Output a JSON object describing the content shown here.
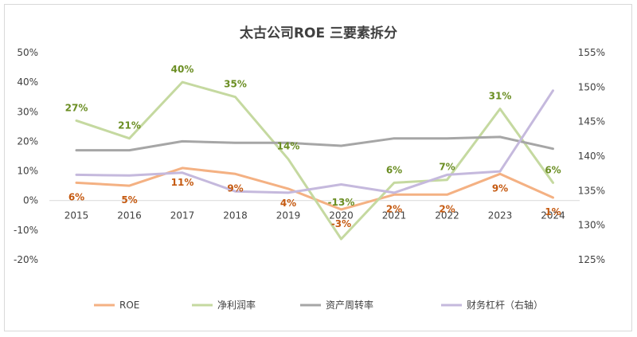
{
  "chart_data": {
    "type": "line",
    "title": "太古公司ROE 三要素拆分",
    "categories": [
      "2015",
      "2016",
      "2017",
      "2018",
      "2019",
      "2020",
      "2021",
      "2022",
      "2023",
      "2024"
    ],
    "left_axis": {
      "ticks": [
        "50%",
        "40%",
        "30%",
        "20%",
        "10%",
        "0%",
        "-10%",
        "-20%"
      ],
      "ylim": [
        -20,
        50
      ]
    },
    "right_axis": {
      "ticks": [
        "155%",
        "150%",
        "145%",
        "140%",
        "135%",
        "130%",
        "125%"
      ],
      "ylim": [
        125,
        155
      ]
    },
    "grid": false,
    "legend_position": "bottom",
    "series": [
      {
        "name": "ROE",
        "axis": "left",
        "color": "#f4b183",
        "values": [
          6,
          5,
          11,
          9,
          4,
          -3,
          2,
          2,
          9,
          1
        ],
        "labels": [
          "6%",
          "5%",
          "11%",
          "9%",
          "4%",
          "-3%",
          "2%",
          "2%",
          "9%",
          "1%"
        ],
        "label_color": "#c55a11"
      },
      {
        "name": "净利润率",
        "axis": "left",
        "color": "#c5d9a0",
        "values": [
          27,
          21,
          40,
          35,
          14,
          -13,
          6,
          7,
          31,
          6
        ],
        "labels": [
          "27%",
          "21%",
          "40%",
          "35%",
          "14%",
          "-13%",
          "6%",
          "7%",
          "31%",
          "6%"
        ],
        "label_color": "#6b8e23"
      },
      {
        "name": "资产周转率",
        "axis": "left",
        "color": "#a6a6a6",
        "values": [
          17,
          17,
          20,
          19.5,
          19.5,
          18.5,
          21,
          21,
          21.5,
          17.5
        ]
      },
      {
        "name": "财务杠杆（右轴）",
        "axis": "right",
        "color": "#c5b9dd",
        "values": [
          137.3,
          137.2,
          137.6,
          134.9,
          134.7,
          135.9,
          134.7,
          137.3,
          137.8,
          149.5
        ]
      }
    ]
  }
}
